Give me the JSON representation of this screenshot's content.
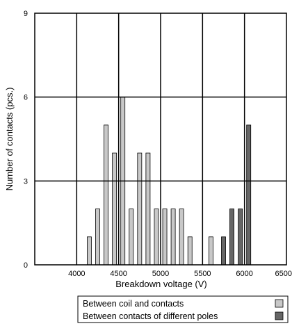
{
  "chart_data": {
    "type": "bar",
    "title": "",
    "xlabel": "Breakdown voltage (V)",
    "ylabel": "Number of contacts (pcs.)",
    "xlim": [
      3500,
      6500
    ],
    "ylim": [
      0,
      9
    ],
    "bin_width": 50,
    "grid": true,
    "legend_position": "bottom-right",
    "x_ticks": [
      {
        "value": 4000,
        "label": "4000"
      },
      {
        "value": 4500,
        "label": "4500"
      },
      {
        "value": 5000,
        "label": "5000"
      },
      {
        "value": 5500,
        "label": "5500"
      },
      {
        "value": 6000,
        "label": "6000"
      },
      {
        "value": 6500,
        "label": "6500"
      }
    ],
    "y_ticks": [
      {
        "value": 0,
        "label": "0"
      },
      {
        "value": 3,
        "label": "3"
      },
      {
        "value": 6,
        "label": "6"
      },
      {
        "value": 9,
        "label": "9"
      }
    ],
    "series": [
      {
        "name": "Between coil and contacts",
        "color": "#c8c8c8",
        "x": [
          4150,
          4250,
          4350,
          4450,
          4550,
          4650,
          4750,
          4850,
          4950,
          5050,
          5150,
          5250,
          5350,
          5600
        ],
        "values": [
          1,
          2,
          5,
          4,
          6,
          2,
          4,
          4,
          2,
          2,
          2,
          2,
          1,
          1
        ]
      },
      {
        "name": "Between contacts of different poles",
        "color": "#666666",
        "x": [
          5750,
          5850,
          5950,
          6050
        ],
        "values": [
          1,
          2,
          2,
          5
        ]
      }
    ]
  }
}
